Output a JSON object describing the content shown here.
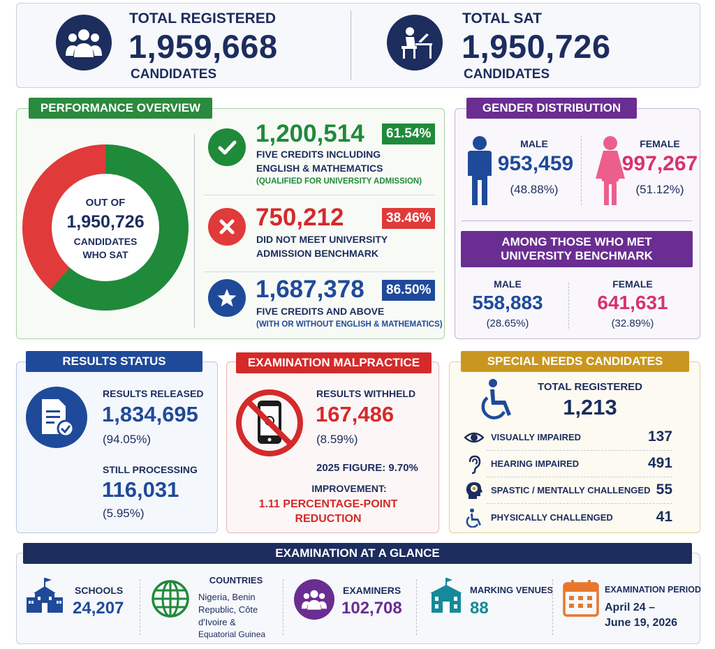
{
  "totals": {
    "registered": {
      "label": "TOTAL REGISTERED",
      "value": "1,959,668",
      "unit": "CANDIDATES",
      "icon": "people-group-icon"
    },
    "sat": {
      "label": "TOTAL SAT",
      "value": "1,950,726",
      "unit": "CANDIDATES",
      "icon": "student-desk-icon"
    }
  },
  "performance": {
    "title": "PERFORMANCE OVERVIEW",
    "donut": {
      "line1": "OUT OF",
      "value": "1,950,726",
      "line2": "CANDIDATES",
      "line3": "WHO SAT",
      "green_fraction": 0.6154,
      "red_fraction": 0.3846,
      "green": "#1f8a3a",
      "red": "#e03a3a"
    },
    "items": [
      {
        "value": "1,200,514",
        "pct": "61.54%",
        "line1": "FIVE CREDITS INCLUDING",
        "line2": "ENGLISH & MATHEMATICS",
        "note": "(QUALIFIED FOR UNIVERSITY ADMISSION)",
        "icon": "check-icon",
        "color": "#1f8a3a"
      },
      {
        "value": "750,212",
        "pct": "38.46%",
        "line1": "DID NOT MEET UNIVERSITY",
        "line2": "ADMISSION BENCHMARK",
        "icon": "x-icon",
        "color": "#d42a2a"
      },
      {
        "value": "1,687,378",
        "pct": "86.50%",
        "line1": "FIVE CREDITS AND ABOVE",
        "note": "(WITH OR WITHOUT ENGLISH & MATHEMATICS)",
        "icon": "star-icon",
        "color": "#1f4a9a"
      }
    ]
  },
  "gender": {
    "title": "GENDER DISTRIBUTION",
    "male": {
      "label": "MALE",
      "value": "953,459",
      "pct": "(48.88%)"
    },
    "female": {
      "label": "FEMALE",
      "value": "997,267",
      "pct": "(51.12%)"
    },
    "benchmark_title_1": "AMONG THOSE WHO MET",
    "benchmark_title_2": "UNIVERSITY BENCHMARK",
    "bm_male": {
      "label": "MALE",
      "value": "558,883",
      "pct": "(28.65%)"
    },
    "bm_female": {
      "label": "FEMALE",
      "value": "641,631",
      "pct": "(32.89%)"
    }
  },
  "results": {
    "title": "RESULTS STATUS",
    "released_label": "RESULTS RELEASED",
    "released_value": "1,834,695",
    "released_pct": "(94.05%)",
    "processing_label": "STILL PROCESSING",
    "processing_value": "116,031",
    "processing_pct": "(5.95%)"
  },
  "malpractice": {
    "title": "EXAMINATION MALPRACTICE",
    "withheld_label": "RESULTS WITHHELD",
    "withheld_value": "167,486",
    "withheld_pct": "(8.59%)",
    "figure_2025": "2025 FIGURE: 9.70%",
    "improvement_label": "IMPROVEMENT:",
    "improvement_1": "1.11 PERCENTAGE-POINT",
    "improvement_2": "REDUCTION"
  },
  "special": {
    "title": "SPECIAL NEEDS CANDIDATES",
    "total_label": "TOTAL REGISTERED",
    "total_value": "1,213",
    "rows": [
      {
        "label": "VISUALLY IMPAIRED",
        "value": "137",
        "icon": "eye-icon"
      },
      {
        "label": "HEARING IMPAIRED",
        "value": "491",
        "icon": "ear-icon"
      },
      {
        "label": "SPASTIC / MENTALLY CHALLENGED",
        "value": "55",
        "icon": "head-brain-icon"
      },
      {
        "label": "PHYSICALLY CHALLENGED",
        "value": "41",
        "icon": "wheelchair-icon"
      }
    ]
  },
  "glance": {
    "title": "EXAMINATION AT A GLANCE",
    "schools_label": "SCHOOLS",
    "schools_value": "24,207",
    "countries_label": "COUNTRIES",
    "countries_1": "Nigeria, Benin",
    "countries_2": "Republic, Côte",
    "countries_3": "d'Ivoire &",
    "countries_4": "Equatorial Guinea",
    "examiners_label": "EXAMINERS",
    "examiners_value": "102,708",
    "venues_label": "MARKING VENUES",
    "venues_value": "88",
    "period_label": "EXAMINATION PERIOD",
    "period_1": "April 24 –",
    "period_2": "June 19, 2026"
  }
}
